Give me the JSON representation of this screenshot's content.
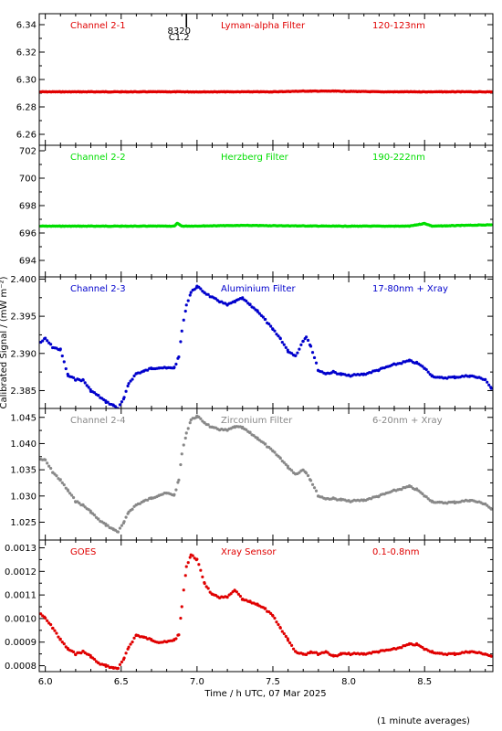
{
  "figure": {
    "xlabel": "Time / h UTC, 07 Mar 2025",
    "ylabel": "Calibrated Signal / (mW m⁻²)",
    "footnote": "(1 minute averages)",
    "flare_marker": {
      "label_top": "8320",
      "label_bottom": "C1.2",
      "x": 6.93
    },
    "xlim": [
      5.96,
      8.95
    ],
    "xticks": [
      6.0,
      6.5,
      7.0,
      7.5,
      8.0,
      8.5
    ],
    "xtick_labels": [
      "6.0",
      "6.5",
      "7.0",
      "7.5",
      "8.0",
      "8.5"
    ]
  },
  "chart_data": [
    {
      "type": "scatter",
      "title": "Channel 2-1",
      "filter": "Lyman-alpha Filter",
      "band": "120-123nm",
      "color": "#e00000",
      "ylim": [
        6.252,
        6.348
      ],
      "yticks": [
        6.26,
        6.28,
        6.3,
        6.32,
        6.34
      ],
      "ytick_labels": [
        "6.26",
        "6.28",
        "6.30",
        "6.32",
        "6.34"
      ],
      "x": [
        5.97,
        6.5,
        7.0,
        7.5,
        7.7,
        7.9,
        8.2,
        8.6,
        8.94
      ],
      "y": [
        6.291,
        6.291,
        6.291,
        6.291,
        6.2915,
        6.2915,
        6.291,
        6.291,
        6.291
      ]
    },
    {
      "type": "scatter",
      "title": "Channel 2-2",
      "filter": "Herzberg Filter",
      "band": "190-222nm",
      "color": "#00dd00",
      "ylim": [
        692.8,
        702.4
      ],
      "yticks": [
        694,
        696,
        698,
        700,
        702
      ],
      "ytick_labels": [
        "694",
        "696",
        "698",
        "700",
        "702"
      ],
      "x": [
        5.97,
        6.5,
        6.85,
        6.87,
        6.9,
        7.3,
        7.9,
        8.4,
        8.5,
        8.55,
        8.94
      ],
      "y": [
        696.5,
        696.5,
        696.5,
        696.7,
        696.5,
        696.55,
        696.5,
        696.5,
        696.7,
        696.5,
        696.6
      ]
    },
    {
      "type": "scatter",
      "title": "Channel 2-3",
      "filter": "Aluminium Filter",
      "band": "17-80nm + Xray",
      "color": "#0000cc",
      "ylim": [
        2.3826,
        2.4003
      ],
      "yticks": [
        2.385,
        2.39,
        2.395,
        2.4
      ],
      "ytick_labels": [
        "2.385",
        "2.390",
        "2.395",
        "2.400"
      ],
      "x": [
        5.97,
        6.0,
        6.05,
        6.1,
        6.15,
        6.2,
        6.25,
        6.3,
        6.35,
        6.4,
        6.45,
        6.48,
        6.52,
        6.55,
        6.6,
        6.65,
        6.7,
        6.75,
        6.8,
        6.85,
        6.88,
        6.9,
        6.93,
        6.96,
        7.0,
        7.05,
        7.1,
        7.15,
        7.2,
        7.25,
        7.3,
        7.35,
        7.4,
        7.45,
        7.5,
        7.55,
        7.6,
        7.65,
        7.7,
        7.72,
        7.75,
        7.8,
        7.85,
        7.9,
        7.95,
        8.0,
        8.1,
        8.2,
        8.3,
        8.4,
        8.45,
        8.5,
        8.55,
        8.6,
        8.7,
        8.8,
        8.9,
        8.94
      ],
      "y": [
        2.3915,
        2.392,
        2.3908,
        2.3905,
        2.387,
        2.3865,
        2.3864,
        2.385,
        2.3843,
        2.3835,
        2.383,
        2.3826,
        2.384,
        2.386,
        2.3873,
        2.3876,
        2.388,
        2.3881,
        2.388,
        2.3881,
        2.3895,
        2.393,
        2.3965,
        2.3982,
        2.399,
        2.3982,
        2.3975,
        2.397,
        2.3965,
        2.397,
        2.3974,
        2.3965,
        2.3957,
        2.3945,
        2.3932,
        2.392,
        2.3903,
        2.3897,
        2.3917,
        2.3923,
        2.391,
        2.3877,
        2.3873,
        2.3875,
        2.3872,
        2.387,
        2.3872,
        2.3878,
        2.3885,
        2.389,
        2.3887,
        2.388,
        2.387,
        2.3867,
        2.3868,
        2.387,
        2.3865,
        2.3853
      ]
    },
    {
      "type": "scatter",
      "title": "Channel 2-4",
      "filter": "Zirconium Filter",
      "band": "6-20nm + Xray",
      "color": "#888888",
      "ylim": [
        1.0216,
        1.0467
      ],
      "yticks": [
        1.025,
        1.03,
        1.035,
        1.04,
        1.045
      ],
      "ytick_labels": [
        "1.025",
        "1.030",
        "1.035",
        "1.040",
        "1.045"
      ],
      "x": [
        5.97,
        6.0,
        6.05,
        6.1,
        6.15,
        6.2,
        6.25,
        6.3,
        6.35,
        6.4,
        6.45,
        6.48,
        6.52,
        6.55,
        6.6,
        6.65,
        6.7,
        6.75,
        6.8,
        6.85,
        6.88,
        6.9,
        6.93,
        6.96,
        7.0,
        7.05,
        7.1,
        7.15,
        7.2,
        7.25,
        7.3,
        7.35,
        7.4,
        7.45,
        7.5,
        7.55,
        7.6,
        7.65,
        7.7,
        7.72,
        7.75,
        7.8,
        7.85,
        7.9,
        7.95,
        8.0,
        8.1,
        8.2,
        8.3,
        8.4,
        8.45,
        8.5,
        8.55,
        8.6,
        8.7,
        8.8,
        8.9,
        8.94
      ],
      "y": [
        1.037,
        1.0368,
        1.0345,
        1.033,
        1.031,
        1.029,
        1.0282,
        1.027,
        1.0255,
        1.0245,
        1.0236,
        1.0232,
        1.025,
        1.027,
        1.0283,
        1.029,
        1.0296,
        1.0302,
        1.0305,
        1.0302,
        1.033,
        1.038,
        1.042,
        1.0445,
        1.0452,
        1.044,
        1.043,
        1.0427,
        1.0425,
        1.0432,
        1.043,
        1.042,
        1.041,
        1.0398,
        1.0385,
        1.0372,
        1.0355,
        1.0342,
        1.035,
        1.0345,
        1.033,
        1.03,
        1.0295,
        1.0295,
        1.0293,
        1.029,
        1.0292,
        1.03,
        1.031,
        1.0318,
        1.0312,
        1.03,
        1.029,
        1.0287,
        1.0288,
        1.0292,
        1.0285,
        1.0275
      ]
    },
    {
      "type": "scatter",
      "title": "GOES",
      "filter": "Xray Sensor",
      "band": "0.1-0.8nm",
      "color": "#e00000",
      "ylim": [
        0.000775,
        0.001333
      ],
      "yticks": [
        0.0008,
        0.0009,
        0.001,
        0.0011,
        0.0012,
        0.0013
      ],
      "ytick_labels": [
        "0.0008",
        "0.0009",
        "0.0010",
        "0.0011",
        "0.0012",
        "0.0013"
      ],
      "x": [
        5.97,
        6.0,
        6.05,
        6.1,
        6.15,
        6.2,
        6.25,
        6.3,
        6.35,
        6.4,
        6.45,
        6.48,
        6.52,
        6.55,
        6.6,
        6.65,
        6.7,
        6.75,
        6.8,
        6.85,
        6.88,
        6.9,
        6.93,
        6.96,
        7.0,
        7.05,
        7.1,
        7.15,
        7.2,
        7.25,
        7.3,
        7.35,
        7.4,
        7.45,
        7.5,
        7.55,
        7.6,
        7.65,
        7.7,
        7.72,
        7.75,
        7.8,
        7.85,
        7.9,
        7.95,
        8.0,
        8.1,
        8.2,
        8.3,
        8.4,
        8.45,
        8.5,
        8.55,
        8.6,
        8.7,
        8.8,
        8.9,
        8.94
      ],
      "y": [
        0.00102,
        0.001,
        0.00096,
        0.00091,
        0.00087,
        0.00085,
        0.00086,
        0.00084,
        0.00081,
        0.0008,
        0.00079,
        0.00079,
        0.00083,
        0.00088,
        0.00093,
        0.00092,
        0.00091,
        0.0009,
        0.0009,
        0.00091,
        0.00093,
        0.00105,
        0.00122,
        0.00127,
        0.00125,
        0.00115,
        0.0011,
        0.00109,
        0.00109,
        0.00112,
        0.00108,
        0.00107,
        0.00106,
        0.00104,
        0.00101,
        0.00096,
        0.00091,
        0.00086,
        0.00085,
        0.00085,
        0.00086,
        0.00085,
        0.00086,
        0.00084,
        0.00085,
        0.00085,
        0.00085,
        0.00086,
        0.00087,
        0.00089,
        0.00089,
        0.00087,
        0.00086,
        0.00085,
        0.00085,
        0.00086,
        0.00085,
        0.00084
      ]
    }
  ]
}
